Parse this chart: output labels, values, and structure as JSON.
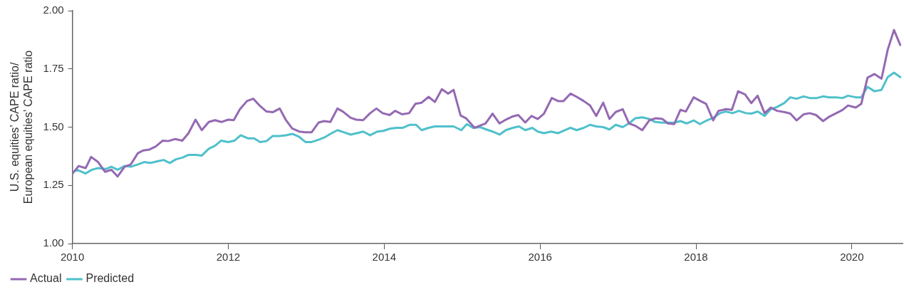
{
  "chart_data": {
    "type": "line",
    "ylabel": "U.S. equities’ CAPE ratio/ European equities’ CAPE ratio",
    "xlim": [
      2010,
      2020.65
    ],
    "xticks": [
      2010,
      2012,
      2014,
      2016,
      2018,
      2020
    ],
    "ylim": [
      1,
      2
    ],
    "yticks": [
      {
        "value": 1,
        "label": "1.00"
      },
      {
        "value": 1.25,
        "label": "1.25"
      },
      {
        "value": 1.5,
        "label": "1.50"
      },
      {
        "value": 1.75,
        "label": "1.75"
      },
      {
        "value": 2,
        "label": "2.00"
      }
    ],
    "grid": false,
    "legend": "bottom left",
    "marker": "none",
    "line_style": "solid",
    "series": [
      {
        "name": "Actual",
        "color": "#9469b2",
        "x": [
          2010,
          2010.08,
          2010.17,
          2010.24,
          2010.33,
          2010.42,
          2010.5,
          2010.58,
          2010.67,
          2010.75,
          2010.84,
          2010.91,
          2010.99,
          2011.07,
          2011.16,
          2011.23,
          2011.32,
          2011.41,
          2011.49,
          2011.58,
          2011.66,
          2011.75,
          2011.83,
          2011.91,
          2012,
          2012.07,
          2012.15,
          2012.24,
          2012.32,
          2012.4,
          2012.49,
          2012.57,
          2012.66,
          2012.74,
          2012.82,
          2012.91,
          2012.99,
          2013.07,
          2013.16,
          2013.23,
          2013.31,
          2013.4,
          2013.47,
          2013.57,
          2013.64,
          2013.73,
          2013.82,
          2013.9,
          2013.98,
          2014.07,
          2014.14,
          2014.23,
          2014.32,
          2014.4,
          2014.48,
          2014.57,
          2014.65,
          2014.74,
          2014.82,
          2014.89,
          2014.98,
          2015.05,
          2015.16,
          2015.3,
          2015.39,
          2015.48,
          2015.56,
          2015.64,
          2015.72,
          2015.81,
          2015.89,
          2015.97,
          2016.05,
          2016.15,
          2016.23,
          2016.3,
          2016.39,
          2016.47,
          2016.56,
          2016.64,
          2016.72,
          2016.81,
          2016.89,
          2016.97,
          2017.06,
          2017.14,
          2017.22,
          2017.31,
          2017.4,
          2017.48,
          2017.57,
          2017.64,
          2017.72,
          2017.8,
          2017.87,
          2017.97,
          2018.04,
          2018.13,
          2018.22,
          2018.29,
          2018.38,
          2018.46,
          2018.54,
          2018.63,
          2018.71,
          2018.79,
          2018.88,
          2018.96,
          2019.04,
          2019.14,
          2019.21,
          2019.29,
          2019.38,
          2019.46,
          2019.54,
          2019.63,
          2019.71,
          2019.8,
          2019.88,
          2019.95,
          2020.05,
          2020.12,
          2020.2,
          2020.29,
          2020.38,
          2020.46,
          2020.54,
          2020.62
        ],
        "values": [
          1.3,
          1.333,
          1.324,
          1.372,
          1.35,
          1.308,
          1.317,
          1.288,
          1.33,
          1.34,
          1.388,
          1.4,
          1.404,
          1.417,
          1.442,
          1.44,
          1.449,
          1.442,
          1.474,
          1.532,
          1.487,
          1.522,
          1.53,
          1.522,
          1.532,
          1.53,
          1.577,
          1.612,
          1.622,
          1.593,
          1.567,
          1.564,
          1.58,
          1.53,
          1.494,
          1.481,
          1.478,
          1.478,
          1.52,
          1.526,
          1.522,
          1.58,
          1.567,
          1.54,
          1.532,
          1.53,
          1.56,
          1.58,
          1.56,
          1.552,
          1.57,
          1.555,
          1.56,
          1.6,
          1.605,
          1.63,
          1.608,
          1.663,
          1.644,
          1.66,
          1.55,
          1.538,
          1.497,
          1.516,
          1.558,
          1.516,
          1.532,
          1.545,
          1.552,
          1.52,
          1.548,
          1.535,
          1.558,
          1.625,
          1.612,
          1.612,
          1.644,
          1.63,
          1.612,
          1.593,
          1.548,
          1.605,
          1.535,
          1.565,
          1.577,
          1.516,
          1.506,
          1.487,
          1.529,
          1.538,
          1.535,
          1.516,
          1.513,
          1.574,
          1.567,
          1.628,
          1.615,
          1.6,
          1.529,
          1.57,
          1.577,
          1.574,
          1.654,
          1.64,
          1.603,
          1.635,
          1.56,
          1.584,
          1.57,
          1.564,
          1.558,
          1.529,
          1.555,
          1.56,
          1.552,
          1.526,
          1.545,
          1.56,
          1.574,
          1.593,
          1.584,
          1.6,
          1.712,
          1.728,
          1.708,
          1.833,
          1.917,
          1.853
        ]
      },
      {
        "name": "Predicted",
        "color": "#4fc0cb",
        "x": [
          2010,
          2010.06,
          2010.17,
          2010.25,
          2010.33,
          2010.43,
          2010.5,
          2010.58,
          2010.67,
          2010.75,
          2010.84,
          2010.92,
          2011,
          2011.09,
          2011.17,
          2011.25,
          2011.33,
          2011.41,
          2011.49,
          2011.59,
          2011.66,
          2011.75,
          2011.83,
          2011.91,
          2012,
          2012.08,
          2012.16,
          2012.25,
          2012.33,
          2012.41,
          2012.49,
          2012.57,
          2012.66,
          2012.74,
          2012.82,
          2012.91,
          2012.99,
          2013.07,
          2013.16,
          2013.23,
          2013.31,
          2013.4,
          2013.48,
          2013.57,
          2013.65,
          2013.73,
          2013.82,
          2013.91,
          2013.99,
          2014.08,
          2014.16,
          2014.24,
          2014.33,
          2014.41,
          2014.48,
          2014.57,
          2014.65,
          2014.74,
          2014.81,
          2014.89,
          2014.99,
          2015.06,
          2015.14,
          2015.23,
          2015.31,
          2015.39,
          2015.48,
          2015.56,
          2015.65,
          2015.73,
          2015.81,
          2015.9,
          2015.97,
          2016.05,
          2016.14,
          2016.23,
          2016.3,
          2016.39,
          2016.47,
          2016.56,
          2016.64,
          2016.72,
          2016.81,
          2016.89,
          2016.97,
          2017.06,
          2017.14,
          2017.22,
          2017.31,
          2017.4,
          2017.48,
          2017.57,
          2017.64,
          2017.72,
          2017.8,
          2017.88,
          2017.97,
          2018.05,
          2018.14,
          2018.23,
          2018.31,
          2018.38,
          2018.47,
          2018.55,
          2018.64,
          2018.71,
          2018.79,
          2018.88,
          2018.96,
          2019.04,
          2019.13,
          2019.21,
          2019.29,
          2019.38,
          2019.46,
          2019.55,
          2019.63,
          2019.71,
          2019.8,
          2019.88,
          2019.95,
          2020.05,
          2020.12,
          2020.2,
          2020.29,
          2020.38,
          2020.46,
          2020.54,
          2020.62
        ],
        "values": [
          1.304,
          1.317,
          1.301,
          1.317,
          1.324,
          1.32,
          1.33,
          1.317,
          1.333,
          1.33,
          1.34,
          1.35,
          1.346,
          1.353,
          1.359,
          1.346,
          1.362,
          1.369,
          1.381,
          1.381,
          1.378,
          1.407,
          1.42,
          1.442,
          1.436,
          1.442,
          1.465,
          1.452,
          1.452,
          1.436,
          1.44,
          1.462,
          1.462,
          1.465,
          1.471,
          1.458,
          1.436,
          1.436,
          1.446,
          1.455,
          1.471,
          1.487,
          1.478,
          1.468,
          1.474,
          1.481,
          1.465,
          1.481,
          1.484,
          1.494,
          1.497,
          1.497,
          1.51,
          1.51,
          1.487,
          1.497,
          1.503,
          1.503,
          1.503,
          1.503,
          1.487,
          1.513,
          1.497,
          1.5,
          1.49,
          1.481,
          1.468,
          1.487,
          1.497,
          1.503,
          1.487,
          1.497,
          1.481,
          1.474,
          1.481,
          1.474,
          1.484,
          1.497,
          1.487,
          1.497,
          1.51,
          1.503,
          1.5,
          1.49,
          1.51,
          1.5,
          1.516,
          1.538,
          1.542,
          1.535,
          1.522,
          1.519,
          1.519,
          1.519,
          1.526,
          1.516,
          1.529,
          1.513,
          1.529,
          1.542,
          1.56,
          1.567,
          1.56,
          1.57,
          1.56,
          1.558,
          1.567,
          1.548,
          1.577,
          1.587,
          1.603,
          1.628,
          1.622,
          1.632,
          1.625,
          1.625,
          1.632,
          1.628,
          1.628,
          1.625,
          1.635,
          1.628,
          1.628,
          1.673,
          1.654,
          1.66,
          1.715,
          1.734,
          1.715
        ]
      }
    ]
  }
}
